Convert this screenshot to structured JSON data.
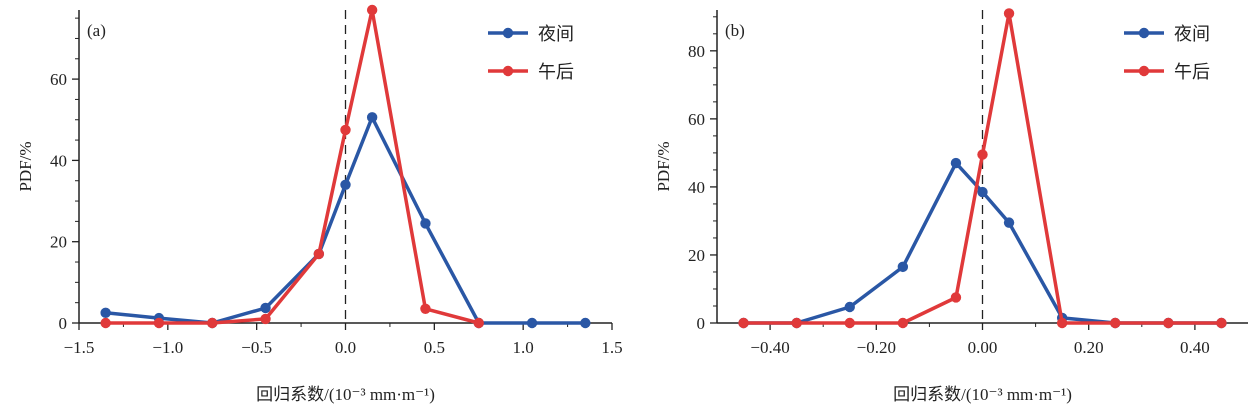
{
  "colors": {
    "night": "#2a57a5",
    "afternoon": "#e0393a",
    "axis": "#222222"
  },
  "chart_data": [
    {
      "type": "line",
      "panel_label": "(a)",
      "ylabel": "PDF/%",
      "xlabel": "回归系数/(10⁻³ mm·m⁻¹)",
      "xlim": [
        -1.5,
        1.5
      ],
      "ylim": [
        0,
        77
      ],
      "xticks": [
        -1.5,
        -1.0,
        -0.5,
        0.0,
        0.5,
        1.0,
        1.5
      ],
      "xtick_labels": [
        "−1.5",
        "−1.0",
        "−0.5",
        "0.0",
        "0.5",
        "1.0",
        "1.5"
      ],
      "yticks": [
        0,
        20,
        40,
        60
      ],
      "ytick_labels": [
        "0",
        "20",
        "40",
        "60"
      ],
      "legend_position": "top-right",
      "series": [
        {
          "name": "夜间",
          "color_key": "night",
          "x": [
            -1.35,
            -1.05,
            -0.75,
            -0.45,
            -0.15,
            0.0,
            0.15,
            0.45,
            0.75,
            1.05,
            1.35
          ],
          "y": [
            2.5,
            1.2,
            0.0,
            3.7,
            17.0,
            34.0,
            50.6,
            24.5,
            0.0,
            0.0,
            0.0
          ]
        },
        {
          "name": "午后",
          "color_key": "afternoon",
          "x": [
            -1.35,
            -1.05,
            -0.75,
            -0.45,
            -0.15,
            0.0,
            0.15,
            0.45,
            0.75
          ],
          "y": [
            0.0,
            0.0,
            0.0,
            1.0,
            17.0,
            47.5,
            77.0,
            3.5,
            0.0
          ]
        }
      ]
    },
    {
      "type": "line",
      "panel_label": "(b)",
      "ylabel": "PDF/%",
      "xlabel": "回归系数/(10⁻³ mm·m⁻¹)",
      "xlim": [
        -0.5,
        0.5
      ],
      "ylim": [
        0,
        92
      ],
      "xticks": [
        -0.4,
        -0.2,
        0.0,
        0.2,
        0.4
      ],
      "xtick_labels": [
        "−0.40",
        "−0.20",
        "0.00",
        "0.20",
        "0.40"
      ],
      "yticks": [
        0,
        20,
        40,
        60,
        80
      ],
      "ytick_labels": [
        "0",
        "20",
        "40",
        "60",
        "80"
      ],
      "legend_position": "top-right",
      "series": [
        {
          "name": "夜间",
          "color_key": "night",
          "x": [
            -0.45,
            -0.35,
            -0.25,
            -0.15,
            -0.05,
            0.0,
            0.05,
            0.15,
            0.25,
            0.35,
            0.45
          ],
          "y": [
            0.0,
            0.0,
            4.7,
            16.5,
            47.0,
            38.5,
            29.5,
            1.5,
            0.0,
            0.0,
            0.0
          ]
        },
        {
          "name": "午后",
          "color_key": "afternoon",
          "x": [
            -0.45,
            -0.35,
            -0.25,
            -0.15,
            -0.05,
            0.0,
            0.05,
            0.15,
            0.25,
            0.35,
            0.45
          ],
          "y": [
            0.0,
            0.0,
            0.0,
            0.0,
            7.5,
            49.5,
            91.0,
            0.0,
            0.0,
            0.0,
            0.0
          ]
        }
      ]
    }
  ]
}
